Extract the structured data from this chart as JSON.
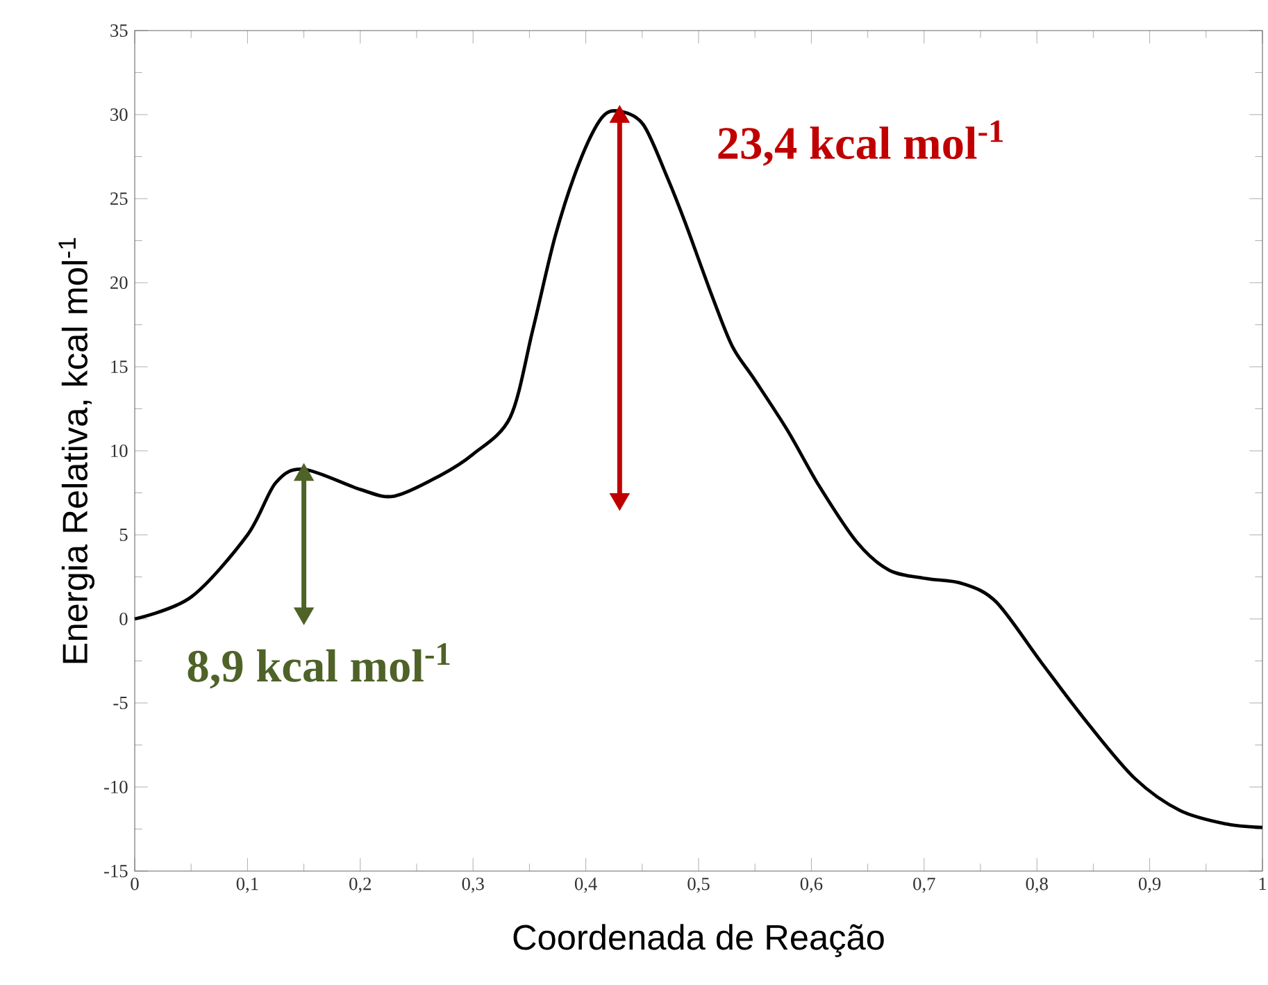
{
  "chart_data": {
    "type": "line",
    "xlabel": "Coordenada de Reação",
    "ylabel": "Energia Relativa, kcal mol$^{-1}$",
    "xlim": [
      0,
      1
    ],
    "ylim": [
      -15,
      35
    ],
    "xticks": [
      0,
      {
        "value": 0.1,
        "label": "0,1"
      },
      {
        "value": 0.2,
        "label": "0,2"
      },
      {
        "value": 0.3,
        "label": "0,3"
      },
      {
        "value": 0.4,
        "label": "0,4"
      },
      {
        "value": 0.5,
        "label": "0,5"
      },
      {
        "value": 0.6,
        "label": "0,6"
      },
      {
        "value": 0.7,
        "label": "0,7"
      },
      {
        "value": 0.8,
        "label": "0,8"
      },
      {
        "value": 0.9,
        "label": "0,9"
      },
      1
    ],
    "yticks": [
      -15,
      -10,
      -5,
      0,
      5,
      10,
      15,
      20,
      25,
      30,
      35
    ],
    "series": [
      {
        "color": "#000000",
        "x": [
          0,
          0.05,
          0.1,
          0.125,
          0.15,
          0.2,
          0.23,
          0.27,
          0.3,
          0.333,
          0.353,
          0.373,
          0.394,
          0.414,
          0.43,
          0.451,
          0.472,
          0.488,
          0.512,
          0.53,
          0.549,
          0.579,
          0.607,
          0.64,
          0.669,
          0.702,
          0.734,
          0.764,
          0.804,
          0.845,
          0.887,
          0.927,
          0.968,
          1.0
        ],
        "values": [
          0,
          1.3,
          5.0,
          8.1,
          8.9,
          7.7,
          7.3,
          8.5,
          9.8,
          12.0,
          17.2,
          22.8,
          27.1,
          29.8,
          30.2,
          29.4,
          26.3,
          23.6,
          19.2,
          16.2,
          14.3,
          11.2,
          7.9,
          4.6,
          2.9,
          2.4,
          2.1,
          1.0,
          -2.6,
          -6.2,
          -9.5,
          -11.4,
          -12.2,
          -12.4
        ]
      },
      {
        "type": "line",
        "color": "#c00000",
        "marker": "triangle",
        "x": [
          0.43,
          0.43
        ],
        "values": [
          6.8,
          30.2
        ]
      },
      {
        "type": "line",
        "color": "#4f6228",
        "marker": "triangle",
        "x": [
          0.15,
          0.15
        ],
        "values": [
          0,
          8.9
        ]
      }
    ],
    "annotations": [
      "23,4 kcal mol$^{-1}$",
      "8,9 kcal mol$^{-1}$"
    ],
    "grid": false,
    "line_style": "solid",
    "marker": "none"
  }
}
